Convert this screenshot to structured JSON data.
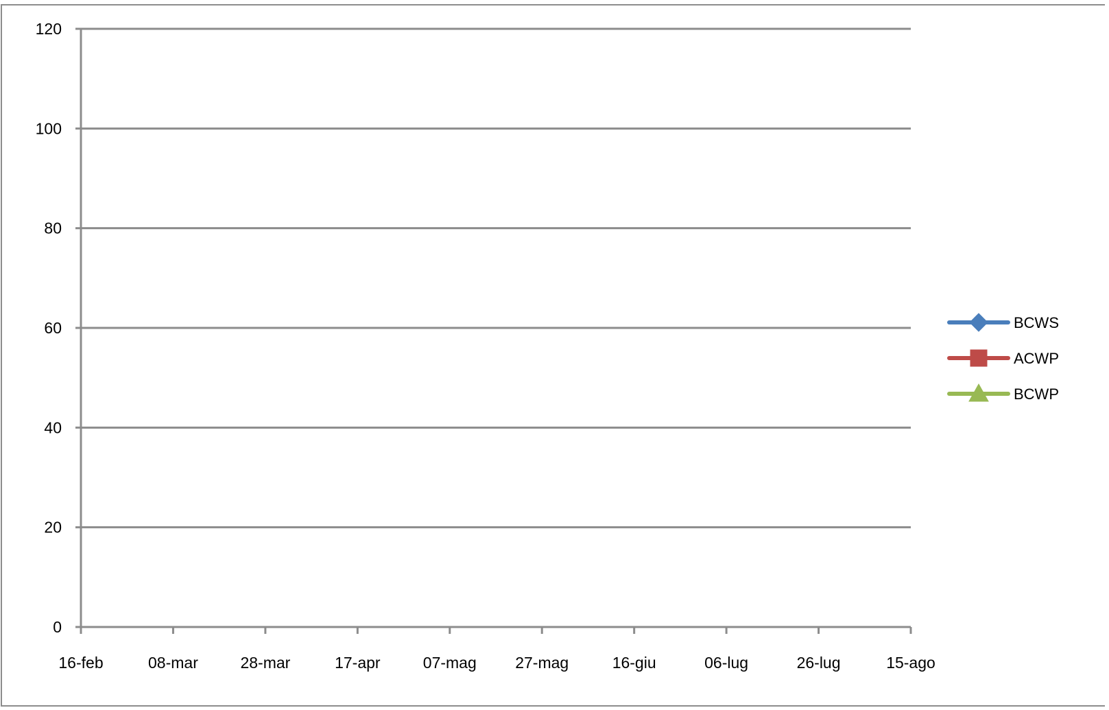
{
  "chart_data": {
    "type": "line",
    "title": "",
    "xlabel": "",
    "ylabel": "",
    "x_ticks": [
      "16-feb",
      "08-mar",
      "28-mar",
      "17-apr",
      "07-mag",
      "27-mag",
      "16-giu",
      "06-lug",
      "26-lug",
      "15-ago"
    ],
    "y_ticks": [
      "0",
      "20",
      "40",
      "60",
      "80",
      "100",
      "120"
    ],
    "ylim": [
      0,
      120
    ],
    "grid": true,
    "legend_position": "right",
    "series": [
      {
        "name": "BCWS",
        "color": "#4a7ebb",
        "marker": "diamond",
        "values": []
      },
      {
        "name": "ACWP",
        "color": "#be4b48",
        "marker": "square",
        "values": []
      },
      {
        "name": "BCWP",
        "color": "#98b954",
        "marker": "triangle",
        "values": []
      }
    ]
  }
}
